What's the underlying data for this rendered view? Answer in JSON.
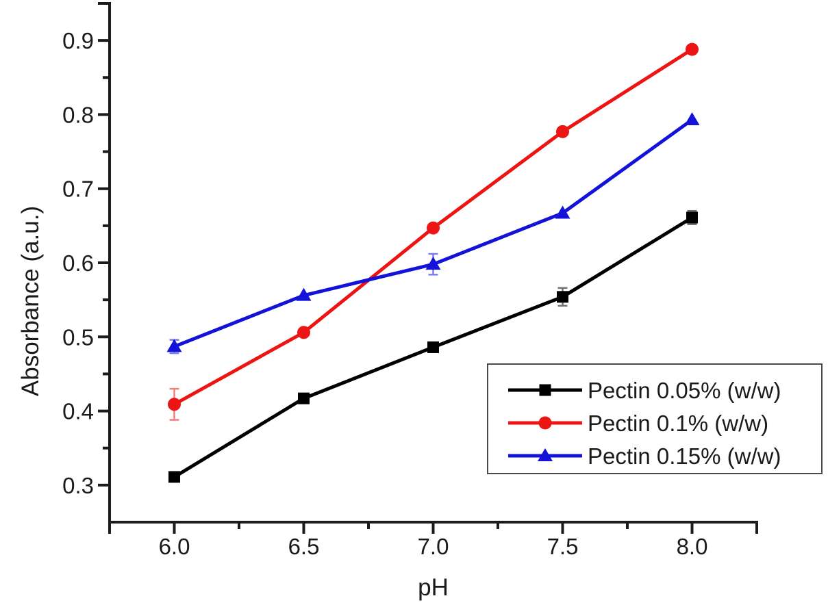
{
  "figure": {
    "background": "#ffffff",
    "axis_color": "#1c1c1c",
    "text_color": "#1a1a1a",
    "legend_border_color": "#4a4a4a"
  },
  "chart_data": {
    "type": "line",
    "title": "",
    "xlabel": "pH",
    "ylabel": "Absorbance (a.u.)",
    "xlim": [
      5.75,
      8.25
    ],
    "ylim": [
      0.25,
      0.95
    ],
    "xticks": [
      6.0,
      6.5,
      7.0,
      7.5,
      8.0
    ],
    "xtick_labels": [
      "6.0",
      "6.5",
      "7.0",
      "7.5",
      "8.0"
    ],
    "xminor_ticks": [
      6.25,
      6.75,
      7.25,
      7.75
    ],
    "yticks": [
      0.3,
      0.4,
      0.5,
      0.6,
      0.7,
      0.8,
      0.9
    ],
    "ytick_labels": [
      "0.3",
      "0.4",
      "0.5",
      "0.6",
      "0.7",
      "0.8",
      "0.9"
    ],
    "yminor_ticks": [
      0.35,
      0.45,
      0.55,
      0.65,
      0.75,
      0.85
    ],
    "grid": false,
    "legend_position": "inside-lower-right",
    "x": [
      6.0,
      6.5,
      7.0,
      7.5,
      8.0
    ],
    "series": [
      {
        "name": "Pectin 0.05% (w/w)",
        "color": "#000000",
        "marker": "square",
        "values": [
          0.311,
          0.417,
          0.486,
          0.554,
          0.661
        ],
        "yerr": [
          0,
          0,
          0,
          0.012,
          0.009
        ]
      },
      {
        "name": "Pectin 0.1% (w/w)",
        "color": "#ed1414",
        "marker": "circle",
        "values": [
          0.409,
          0.506,
          0.647,
          0.777,
          0.888
        ],
        "yerr": [
          0.021,
          0,
          0,
          0,
          0
        ]
      },
      {
        "name": "Pectin 0.15% (w/w)",
        "color": "#1212d9",
        "marker": "triangle",
        "values": [
          0.487,
          0.556,
          0.598,
          0.667,
          0.793
        ],
        "yerr": [
          0.009,
          0,
          0.014,
          0,
          0
        ]
      }
    ]
  }
}
